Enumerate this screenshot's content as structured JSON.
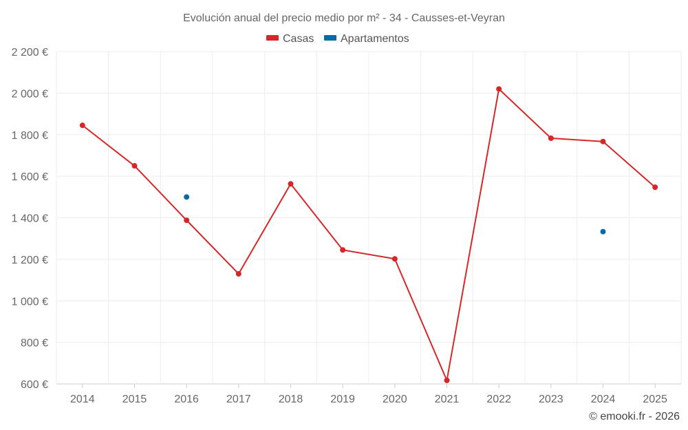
{
  "chart_data": {
    "type": "line",
    "title": "Evolución anual del precio medio por m² - 34 - Causses-et-Veyran",
    "x": [
      "2014",
      "2015",
      "2016",
      "2017",
      "2018",
      "2019",
      "2020",
      "2021",
      "2022",
      "2023",
      "2024",
      "2025"
    ],
    "series": [
      {
        "name": "Casas",
        "color": "#d62728",
        "values": [
          1845,
          1650,
          1388,
          1130,
          1563,
          1245,
          1202,
          617,
          2020,
          1783,
          1767,
          1547
        ]
      },
      {
        "name": "Apartamentos",
        "color": "#0a6aa1",
        "values": [
          null,
          null,
          1500,
          null,
          null,
          null,
          null,
          null,
          null,
          null,
          1333,
          null
        ]
      }
    ],
    "ylim": [
      600,
      2200
    ],
    "yticks": [
      600,
      800,
      1000,
      1200,
      1400,
      1600,
      1800,
      2000,
      2200
    ],
    "ytick_labels": [
      "600 €",
      "800 €",
      "1 000 €",
      "1 200 €",
      "1 400 €",
      "1 600 €",
      "1 800 €",
      "2 000 €",
      "2 200 €"
    ],
    "xlabel": "",
    "ylabel": "",
    "grid": true,
    "legend_position": "top-center"
  },
  "credit": "© emooki.fr - 2026"
}
